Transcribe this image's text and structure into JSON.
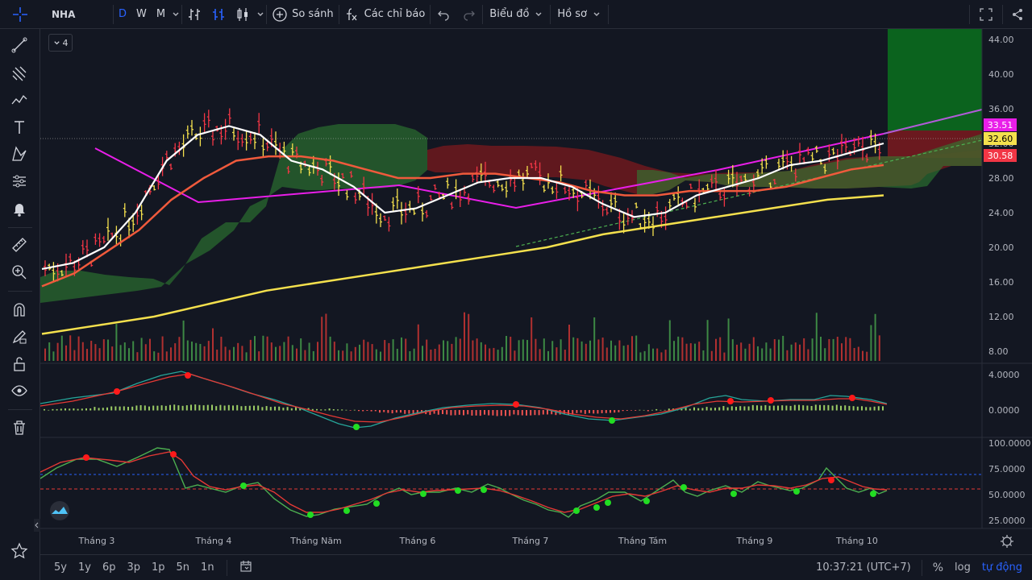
{
  "toolbar": {
    "symbol": "NHA",
    "intervals": [
      "D",
      "W",
      "M"
    ],
    "compare_label": "So sánh",
    "indicators_label": "Các chỉ báo",
    "chart_label": "Biểu đồ",
    "profile_label": "Hồ sơ"
  },
  "legend_count": "4",
  "price_axis": {
    "ticks": [
      "44.00",
      "40.00",
      "36.00",
      "32.00",
      "28.00",
      "24.00",
      "20.00",
      "16.00",
      "12.00",
      "8.00"
    ],
    "badges": {
      "magenta": "33.51",
      "yellow": "32.60",
      "red": "30.58"
    }
  },
  "macd_axis": {
    "ticks": [
      "4.0000",
      "0.0000"
    ]
  },
  "rsi_axis": {
    "ticks": [
      "100.0000",
      "75.0000",
      "50.0000",
      "25.0000"
    ]
  },
  "time_axis": [
    "Tháng 3",
    "Tháng 4",
    "Tháng Năm",
    "Tháng 6",
    "Tháng 7",
    "Tháng Tám",
    "Tháng 9",
    "Tháng 10"
  ],
  "bottom": {
    "ranges": [
      "5y",
      "1y",
      "6p",
      "3p",
      "1p",
      "5n",
      "1n"
    ],
    "clock": "10:37:21 (UTC+7)",
    "percent": "%",
    "log": "log",
    "auto": "tự động"
  },
  "colors": {
    "bg": "#131722",
    "up": "#26a69a",
    "magenta": "#e91ee9",
    "yellow": "#f4e04d",
    "red": "#f23645",
    "white": "#ffffff",
    "orange": "#f05a3c",
    "cloud_green": "#2e7d32",
    "cloud_red": "#7b1a1e",
    "target_green": "#0b6b1e"
  },
  "chart_data": {
    "type": "line",
    "ylim": [
      7,
      45
    ],
    "series": [
      {
        "values": [
          17.5,
          18.2,
          20.0,
          24.0,
          30.0,
          33.0,
          34.0,
          33.0,
          30.0,
          29.0,
          27.0,
          24.0,
          24.5,
          26.0,
          27.5,
          28.0,
          28.0,
          27.0,
          25.0,
          23.5,
          24.0,
          26.0,
          27.0,
          28.0,
          29.5,
          30.0,
          31.0,
          32.0
        ]
      },
      {
        "values": [
          15.5,
          17.0,
          19.5,
          22.0,
          25.5,
          28.0,
          30.0,
          30.5,
          30.5,
          30.0,
          29.0,
          28.0,
          28.0,
          28.5,
          28.5,
          28.0,
          27.5,
          26.5,
          26.0,
          26.0,
          26.5,
          26.5,
          26.5,
          27.0,
          28.0,
          29.0,
          29.5
        ]
      },
      {
        "values": [
          10.0,
          11.0,
          12.0,
          13.5,
          15.0,
          16.0,
          17.0,
          18.0,
          19.0,
          20.0,
          21.5,
          22.5,
          23.5,
          24.5,
          25.5,
          26.0
        ]
      }
    ]
  }
}
